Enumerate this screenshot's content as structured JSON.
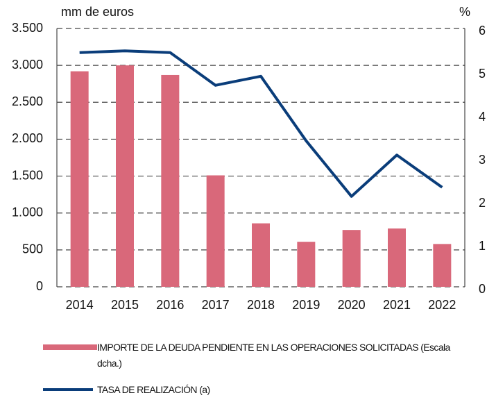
{
  "chart_data": {
    "type": "bar-line",
    "y_label": "mm de euros",
    "y2_label": "%",
    "categories": [
      "2014",
      "2015",
      "2016",
      "2017",
      "2018",
      "2019",
      "2020",
      "2021",
      "2022"
    ],
    "series": [
      {
        "name": "IMPORTE DE LA DEUDA PENDIENTE EN LAS OPERACIONES SOLICITADAS (Escala dcha.)",
        "type": "bar",
        "color": "#d9687a",
        "axis": "y",
        "values": [
          2920,
          3000,
          2870,
          1510,
          860,
          610,
          770,
          790,
          580
        ]
      },
      {
        "name": "TASA DE REALIZACIÓN (a)",
        "type": "line",
        "color": "#0a3d7a",
        "axis": "y2",
        "values": [
          5.44,
          5.48,
          5.44,
          4.68,
          4.89,
          3.39,
          2.1,
          3.06,
          2.31
        ]
      }
    ],
    "ylim": [
      0,
      3500
    ],
    "yticks": [
      0,
      500,
      {
        "value": 1000,
        "label": "1.000"
      },
      {
        "value": 1500,
        "label": "1.500"
      },
      {
        "value": 2000,
        "label": "2.000"
      },
      {
        "value": 2500,
        "label": "2.500"
      },
      {
        "value": 3000,
        "label": "3.000"
      },
      {
        "value": 3500,
        "label": "3.500"
      }
    ],
    "y2lim": [
      0,
      6
    ],
    "y2ticks": [
      0,
      1,
      2,
      3,
      4,
      5,
      6
    ],
    "grid": true
  }
}
